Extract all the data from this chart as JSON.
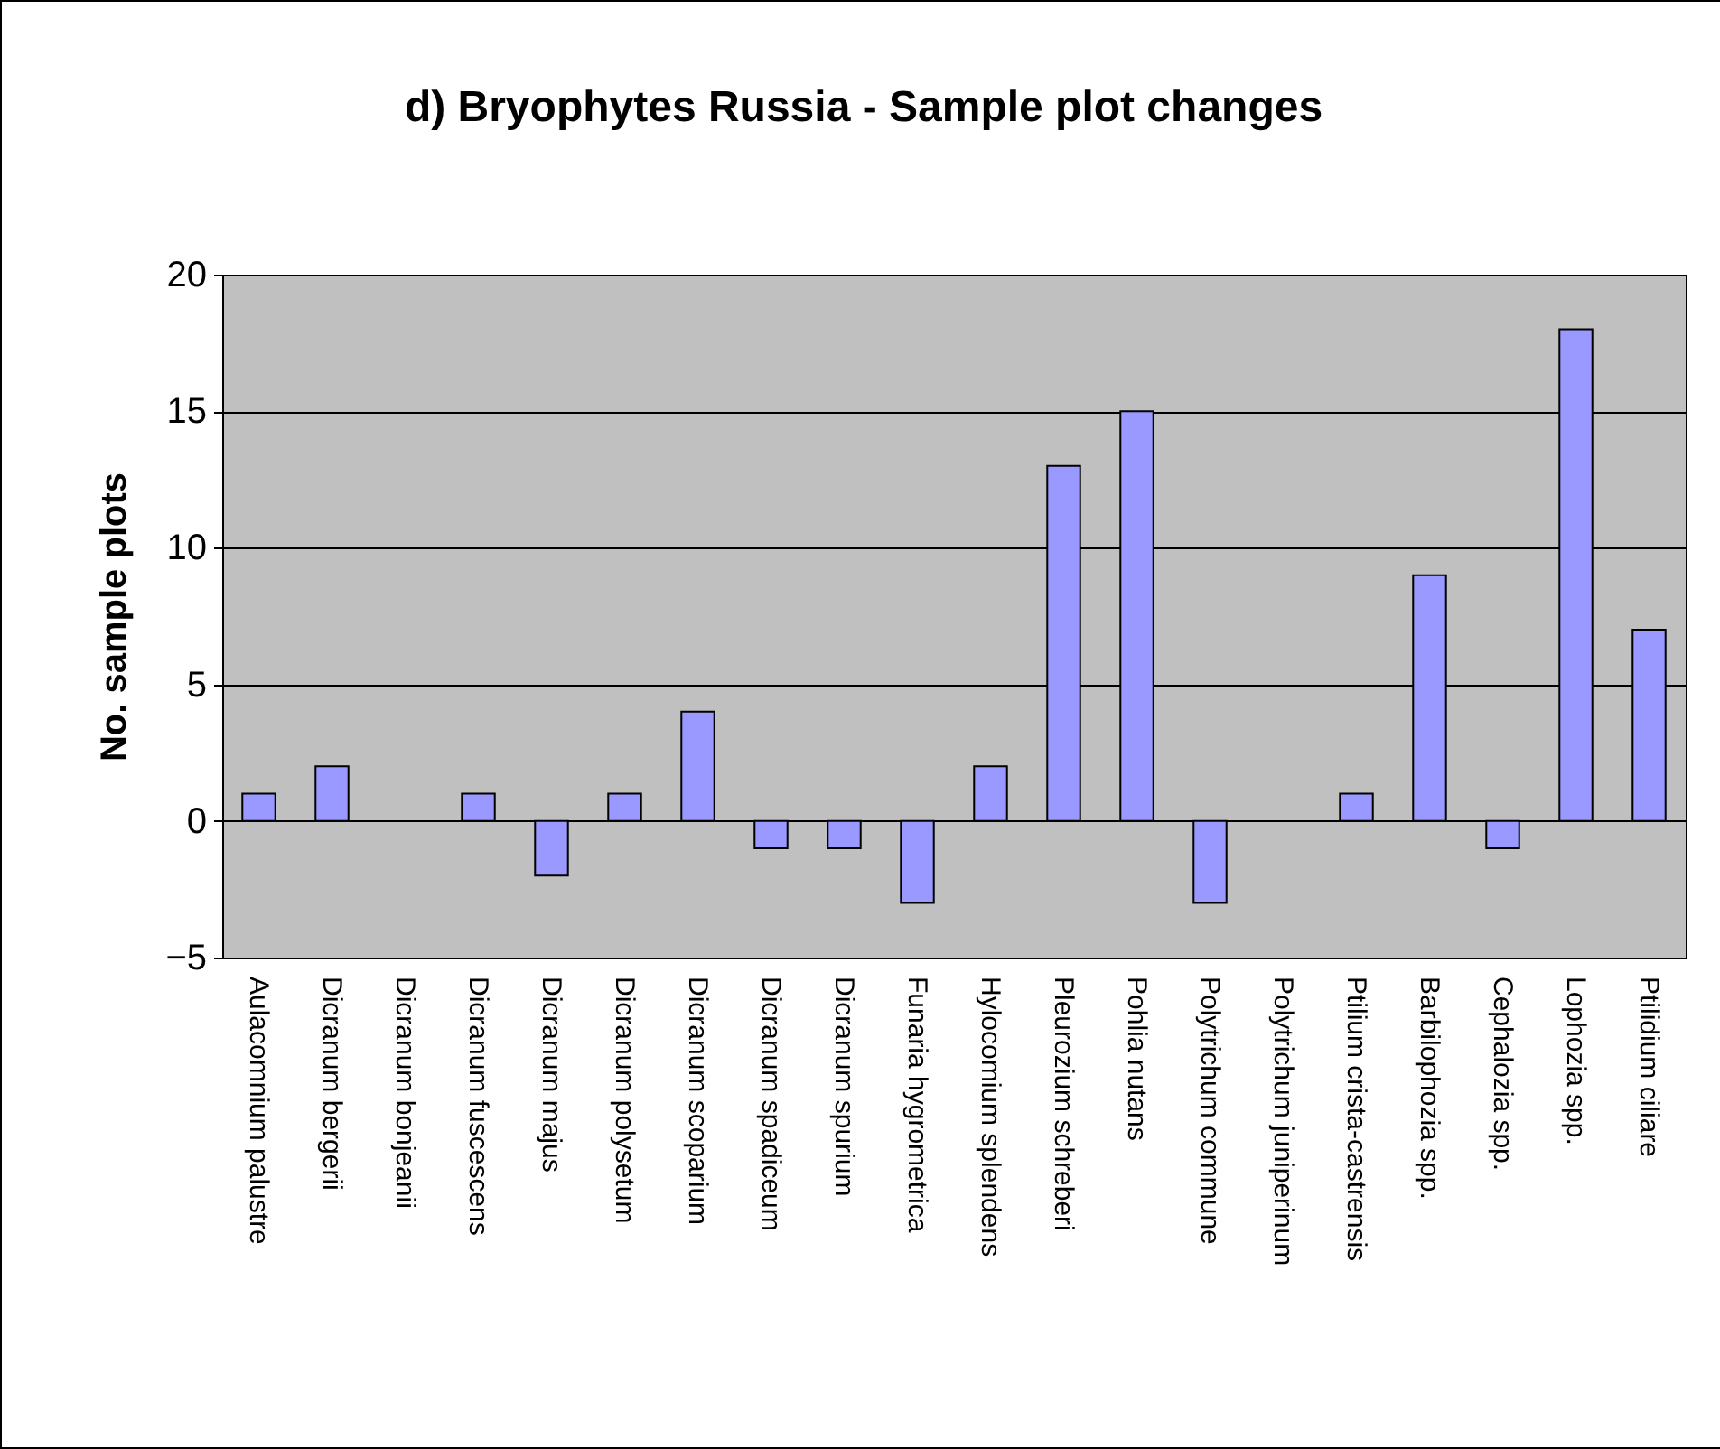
{
  "chart_data": {
    "type": "bar",
    "title": "d) Bryophytes Russia - Sample plot changes",
    "ylabel": "No. sample plots",
    "categories": [
      "Aulacomnium palustre",
      "Dicranum bergerii",
      "Dicranum bonjeanii",
      "Dicranum fuscescens",
      "Dicranum majus",
      "Dicranum polysetum",
      "Dicranum scoparium",
      "Dicranum spadiceum",
      "Dicranum spurium",
      "Funaria hygrometrica",
      "Hylocomium splendens",
      "Pleurozium schreberi",
      "Pohlia nutans",
      "Polytrichum commune",
      "Polytrichum juniperinum",
      "Ptilium crista-castrensis",
      "Barbilophozia spp.",
      "Cephalozia spp.",
      "Lophozia spp.",
      "Ptilidium ciliare"
    ],
    "values": [
      1,
      2,
      0,
      1,
      -2,
      1,
      4,
      -1,
      -1,
      -3,
      2,
      13,
      15,
      -3,
      0,
      1,
      9,
      -1,
      18,
      7
    ],
    "color": "#9999ff",
    "ylim": [
      -5,
      20
    ],
    "yticks": [
      -5,
      0,
      5,
      10,
      15,
      20
    ],
    "grid": "y"
  }
}
